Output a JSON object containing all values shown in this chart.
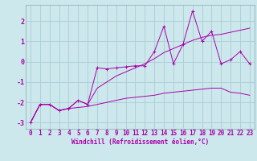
{
  "xlabel": "Windchill (Refroidissement éolien,°C)",
  "bg_color": "#cce8ec",
  "grid_color": "#aacdd4",
  "line_color": "#aa00aa",
  "x_values": [
    0,
    1,
    2,
    3,
    4,
    5,
    6,
    7,
    8,
    9,
    10,
    11,
    12,
    13,
    14,
    15,
    16,
    17,
    18,
    19,
    20,
    21,
    22,
    23
  ],
  "series1": [
    -3.0,
    -2.1,
    -2.1,
    -2.4,
    -2.3,
    -1.9,
    -2.1,
    -0.3,
    -0.35,
    -0.3,
    -0.25,
    -0.2,
    -0.2,
    0.5,
    1.75,
    -0.1,
    0.85,
    2.5,
    1.0,
    1.5,
    -0.1,
    0.1,
    0.5,
    -0.1
  ],
  "series2": [
    -3.0,
    -2.1,
    -2.1,
    -2.4,
    -2.3,
    -1.9,
    -2.1,
    -1.3,
    -1.0,
    -0.7,
    -0.5,
    -0.3,
    -0.1,
    0.15,
    0.45,
    0.65,
    0.85,
    1.05,
    1.2,
    1.3,
    1.35,
    1.45,
    1.55,
    1.65
  ],
  "series3": [
    -3.0,
    -2.1,
    -2.1,
    -2.4,
    -2.3,
    -2.25,
    -2.2,
    -2.1,
    -2.0,
    -1.9,
    -1.8,
    -1.75,
    -1.7,
    -1.65,
    -1.55,
    -1.5,
    -1.45,
    -1.4,
    -1.35,
    -1.3,
    -1.3,
    -1.5,
    -1.55,
    -1.65
  ],
  "xlim": [
    -0.5,
    23.5
  ],
  "ylim": [
    -3.3,
    2.8
  ],
  "yticks": [
    -3,
    -2,
    -1,
    0,
    1,
    2
  ],
  "xlabel_fontsize": 5.5,
  "tick_fontsize": 5.5
}
